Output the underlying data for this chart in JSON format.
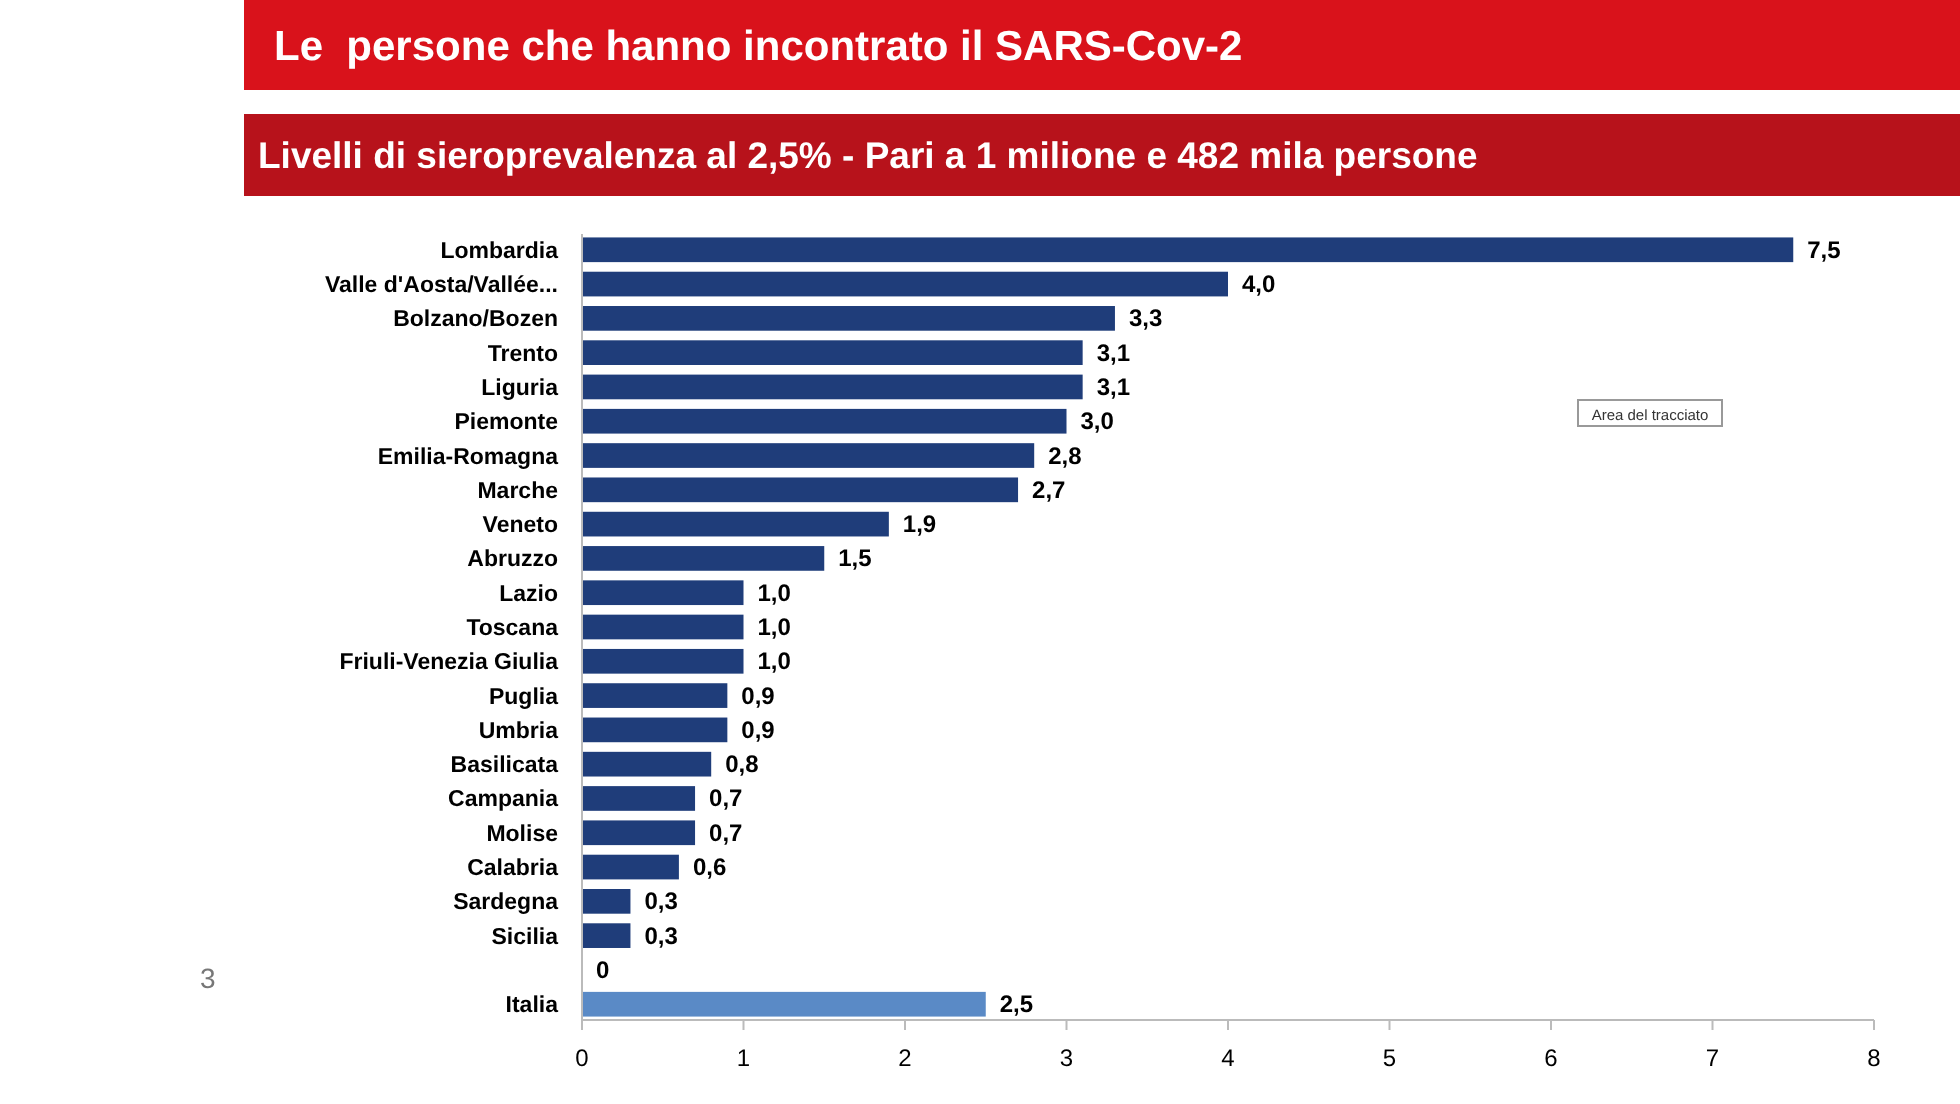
{
  "chart_data": {
    "type": "bar",
    "orientation": "horizontal",
    "title": "Le  persone che hanno incontrato il SARS-Cov-2",
    "subtitle": "Livelli di sieroprevalenza al 2,5% - Pari a 1 milione e 482 mila persone",
    "categories": [
      "Lombardia",
      "Valle d'Aosta/Vallée...",
      "Bolzano/Bozen",
      "Trento",
      "Liguria",
      "Piemonte",
      "Emilia-Romagna",
      "Marche",
      "Veneto",
      "Abruzzo",
      "Lazio",
      "Toscana",
      "Friuli-Venezia Giulia",
      "Puglia",
      "Umbria",
      "Basilicata",
      "Campania",
      "Molise",
      "Calabria",
      "Sardegna",
      "Sicilia",
      null,
      "Italia"
    ],
    "values": [
      7.5,
      4.0,
      3.3,
      3.1,
      3.1,
      3.0,
      2.8,
      2.7,
      1.9,
      1.5,
      1.0,
      1.0,
      1.0,
      0.9,
      0.9,
      0.8,
      0.7,
      0.7,
      0.6,
      0.3,
      0.3,
      0,
      2.5
    ],
    "value_labels": [
      "7,5",
      "4,0",
      "3,3",
      "3,1",
      "3,1",
      "3,0",
      "2,8",
      "2,7",
      "1,9",
      "1,5",
      "1,0",
      "1,0",
      "1,0",
      "0,9",
      "0,9",
      "0,8",
      "0,7",
      "0,7",
      "0,6",
      "0,3",
      "0,3",
      "0",
      "2,5"
    ],
    "colors": [
      "#1f3d7a",
      "#1f3d7a",
      "#1f3d7a",
      "#1f3d7a",
      "#1f3d7a",
      "#1f3d7a",
      "#1f3d7a",
      "#1f3d7a",
      "#1f3d7a",
      "#1f3d7a",
      "#1f3d7a",
      "#1f3d7a",
      "#1f3d7a",
      "#1f3d7a",
      "#1f3d7a",
      "#1f3d7a",
      "#1f3d7a",
      "#1f3d7a",
      "#1f3d7a",
      "#1f3d7a",
      "#1f3d7a",
      "#1f3d7a",
      "#5a8ac6"
    ],
    "xlim": [
      0,
      8
    ],
    "xticks": [
      0,
      1,
      2,
      3,
      4,
      5,
      6,
      7,
      8
    ],
    "grid": false,
    "annotations": [
      "Area del tracciato",
      "3"
    ]
  }
}
